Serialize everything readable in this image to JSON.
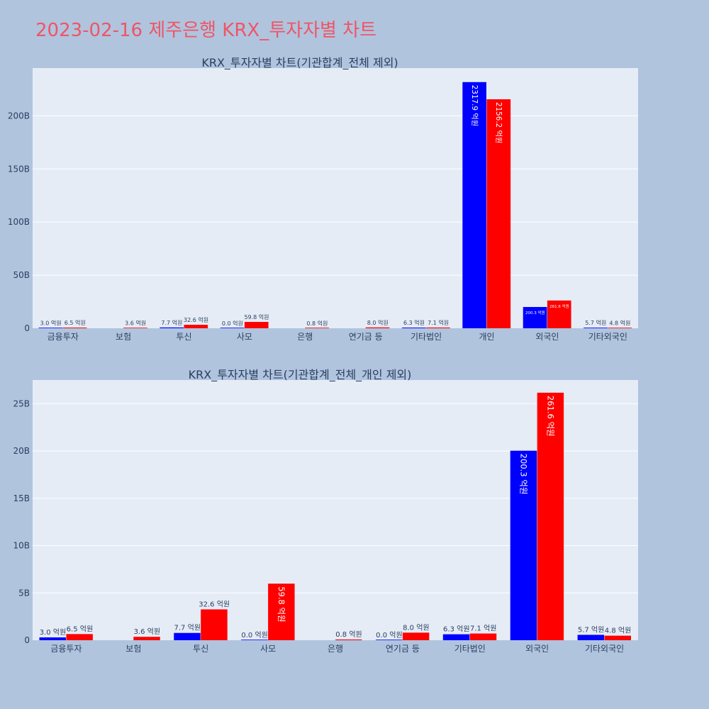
{
  "title": "2023-02-16 제주은행 KRX_투자자별 차트",
  "colors": {
    "title": "#ef5566",
    "buy": "#0000ff",
    "sell": "#ff0000",
    "background": "#b0c4de",
    "plot_bg": "#e5ecf6"
  },
  "chart_data": [
    {
      "type": "bar",
      "title": "KRX_투자자별 차트(기관합계_전체 제외)",
      "categories": [
        "금융투자",
        "보험",
        "투신",
        "사모",
        "은행",
        "연기금 등",
        "기타법인",
        "개인",
        "외국인",
        "기타외국인"
      ],
      "ytick_labels": [
        "0",
        "50B",
        "100B",
        "150B",
        "200B"
      ],
      "ytick_values": [
        0,
        50,
        100,
        150,
        200
      ],
      "ylim": [
        0,
        245
      ],
      "grid": true,
      "series": [
        {
          "color": "#0000ff",
          "values": [
            0.3,
            null,
            0.77,
            0.0,
            null,
            null,
            0.63,
            231.79,
            20.03,
            0.57
          ],
          "labels": [
            "3.0 억원",
            "",
            "7.7 억원",
            "0.0 억원",
            "",
            "",
            "6.3 억원",
            "2317.9 억원",
            "200.3 억원",
            "5.7 억원"
          ]
        },
        {
          "color": "#ff0000",
          "values": [
            0.65,
            0.36,
            3.26,
            5.98,
            0.08,
            0.8,
            0.71,
            215.62,
            26.16,
            0.48
          ],
          "labels": [
            "6.5 억원",
            "3.6 억원",
            "32.6 억원",
            "59.8 억원",
            "0.8 억원",
            "8.0 억원",
            "7.1 억원",
            "2156.2 억원",
            "261.6 억원",
            "4.8 억원"
          ]
        }
      ]
    },
    {
      "type": "bar",
      "title": "KRX_투자자별 차트(기관합계_전체_개인 제외)",
      "categories": [
        "금융투자",
        "보험",
        "투신",
        "사모",
        "은행",
        "연기금 등",
        "기타법인",
        "외국인",
        "기타외국인"
      ],
      "ytick_labels": [
        "0",
        "5B",
        "10B",
        "15B",
        "20B",
        "25B"
      ],
      "ytick_values": [
        0,
        5,
        10,
        15,
        20,
        25
      ],
      "ylim": [
        0,
        27.5
      ],
      "grid": true,
      "series": [
        {
          "color": "#0000ff",
          "values": [
            0.3,
            null,
            0.77,
            0.0,
            null,
            0.0,
            0.63,
            20.03,
            0.57
          ],
          "labels": [
            "3.0 억원",
            "",
            "7.7 억원",
            "0.0 억원",
            "",
            "0.0 억원",
            "6.3 억원",
            "200.3 억원",
            "5.7 억원"
          ]
        },
        {
          "color": "#ff0000",
          "values": [
            0.65,
            0.36,
            3.26,
            5.98,
            0.08,
            0.8,
            0.71,
            26.16,
            0.48
          ],
          "labels": [
            "6.5 억원",
            "3.6 억원",
            "32.6 억원",
            "59.8 억원",
            "0.8 억원",
            "8.0 억원",
            "7.1 억원",
            "261.6 억원",
            "4.8 억원"
          ]
        }
      ]
    }
  ]
}
